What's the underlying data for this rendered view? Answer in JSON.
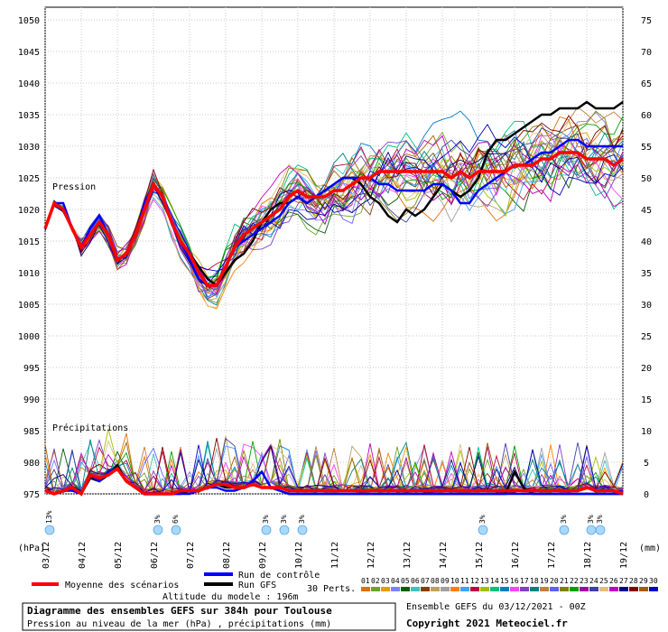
{
  "chart_data": {
    "type": "line",
    "label_pressure": "Pression",
    "label_precip": "Précipitations",
    "unit_left": "(hPa)",
    "unit_right": "(mm)",
    "y_left_ticks": [
      975,
      980,
      985,
      990,
      995,
      1000,
      1005,
      1010,
      1015,
      1020,
      1025,
      1030,
      1035,
      1040,
      1045,
      1050
    ],
    "y_right_ticks": [
      0,
      5,
      10,
      15,
      20,
      25,
      30,
      35,
      40,
      45,
      50,
      55,
      60,
      65,
      70,
      75
    ],
    "ylim_left": [
      975,
      1050
    ],
    "ylim_right": [
      0,
      75
    ],
    "x_ticks": [
      "03/12",
      "04/12",
      "05/12",
      "06/12",
      "07/12",
      "08/12",
      "09/12",
      "10/12",
      "11/12",
      "12/12",
      "13/12",
      "14/12",
      "15/12",
      "16/12",
      "17/12",
      "18/12",
      "19/12"
    ],
    "x_range_hours": [
      0,
      384
    ],
    "snow_marks": [
      {
        "hour": 3,
        "pct": "13%"
      },
      {
        "hour": 75,
        "pct": "3%"
      },
      {
        "hour": 87,
        "pct": "6%"
      },
      {
        "hour": 147,
        "pct": "3%"
      },
      {
        "hour": 159,
        "pct": "3%"
      },
      {
        "hour": 171,
        "pct": "3%"
      },
      {
        "hour": 291,
        "pct": "3%"
      },
      {
        "hour": 345,
        "pct": "3%"
      },
      {
        "hour": 363,
        "pct": "3%"
      },
      {
        "hour": 369,
        "pct": "3%"
      }
    ],
    "series_pressure": [
      {
        "name": "Moyenne des scénarios",
        "color": "#ff0000",
        "x": [
          0,
          6,
          12,
          18,
          24,
          30,
          36,
          42,
          48,
          54,
          60,
          66,
          72,
          78,
          84,
          90,
          96,
          102,
          108,
          114,
          120,
          126,
          132,
          138,
          144,
          150,
          156,
          162,
          168,
          174,
          180,
          186,
          192,
          198,
          204,
          210,
          216,
          222,
          228,
          234,
          240,
          246,
          252,
          258,
          264,
          270,
          276,
          282,
          288,
          294,
          300,
          306,
          312,
          318,
          324,
          330,
          336,
          342,
          348,
          354,
          360,
          366,
          372,
          378,
          384
        ],
        "y": [
          1017,
          1021,
          1020,
          1017,
          1014,
          1016,
          1018,
          1016,
          1012,
          1013,
          1016,
          1020,
          1024,
          1022,
          1018,
          1015,
          1013,
          1010,
          1008,
          1008,
          1011,
          1014,
          1016,
          1017,
          1018,
          1019,
          1020,
          1022,
          1023,
          1022,
          1022,
          1022,
          1023,
          1023,
          1024,
          1025,
          1025,
          1026,
          1026,
          1026,
          1026,
          1026,
          1026,
          1026,
          1026,
          1025,
          1026,
          1025,
          1026,
          1026,
          1026,
          1026,
          1027,
          1027,
          1027,
          1028,
          1028,
          1029,
          1029,
          1029,
          1028,
          1028,
          1028,
          1027,
          1028
        ]
      },
      {
        "name": "Run de contrôle",
        "color": "#0000ff",
        "x": [
          0,
          6,
          12,
          18,
          24,
          30,
          36,
          42,
          48,
          54,
          60,
          66,
          72,
          78,
          84,
          90,
          96,
          102,
          108,
          114,
          120,
          126,
          132,
          138,
          144,
          150,
          156,
          162,
          168,
          174,
          180,
          186,
          192,
          198,
          204,
          210,
          216,
          222,
          228,
          234,
          240,
          246,
          252,
          258,
          264,
          270,
          276,
          282,
          288,
          294,
          300,
          306,
          312,
          318,
          324,
          330,
          336,
          342,
          348,
          354,
          360,
          366,
          372,
          378,
          384
        ],
        "y": [
          1017,
          1021,
          1021,
          1017,
          1014,
          1017,
          1019,
          1016,
          1012,
          1013,
          1016,
          1021,
          1024,
          1022,
          1018,
          1015,
          1012,
          1009,
          1008,
          1008,
          1011,
          1014,
          1015,
          1016,
          1017,
          1018,
          1019,
          1021,
          1022,
          1021,
          1022,
          1023,
          1024,
          1025,
          1025,
          1025,
          1025,
          1024,
          1024,
          1023,
          1023,
          1023,
          1023,
          1024,
          1024,
          1023,
          1021,
          1021,
          1023,
          1024,
          1025,
          1026,
          1027,
          1027,
          1028,
          1029,
          1029,
          1030,
          1031,
          1031,
          1030,
          1030,
          1030,
          1030,
          1030
        ]
      },
      {
        "name": "Run GFS",
        "color": "#000000",
        "x": [
          0,
          6,
          12,
          18,
          24,
          30,
          36,
          42,
          48,
          54,
          60,
          66,
          72,
          78,
          84,
          90,
          96,
          102,
          108,
          114,
          120,
          126,
          132,
          138,
          144,
          150,
          156,
          162,
          168,
          174,
          180,
          186,
          192,
          198,
          204,
          210,
          216,
          222,
          228,
          234,
          240,
          246,
          252,
          258,
          264,
          270,
          276,
          282,
          288,
          294,
          300,
          306,
          312,
          318,
          324,
          330,
          336,
          342,
          348,
          354,
          360,
          366,
          372,
          378,
          384
        ],
        "y": [
          1017,
          1021,
          1020,
          1017,
          1014,
          1016,
          1018,
          1016,
          1012,
          1013,
          1016,
          1020,
          1024,
          1022,
          1018,
          1015,
          1013,
          1011,
          1009,
          1008,
          1010,
          1012,
          1013,
          1015,
          1018,
          1020,
          1021,
          1021,
          1022,
          1021,
          1022,
          1023,
          1024,
          1025,
          1025,
          1024,
          1022,
          1021,
          1019,
          1018,
          1020,
          1019,
          1020,
          1022,
          1024,
          1023,
          1022,
          1023,
          1025,
          1029,
          1031,
          1031,
          1032,
          1033,
          1034,
          1035,
          1035,
          1036,
          1036,
          1036,
          1037,
          1036,
          1036,
          1036,
          1037
        ]
      }
    ],
    "series_precip": [
      {
        "name": "Moyenne des scénarios",
        "color": "#ff0000",
        "x": [
          0,
          6,
          12,
          18,
          24,
          30,
          36,
          42,
          48,
          54,
          60,
          66,
          72,
          78,
          84,
          90,
          96,
          102,
          108,
          114,
          120,
          126,
          132,
          138,
          144,
          150,
          156,
          162,
          168,
          174,
          180,
          186,
          192,
          198,
          204,
          210,
          216,
          222,
          228,
          234,
          240,
          246,
          252,
          258,
          264,
          270,
          276,
          282,
          288,
          294,
          300,
          306,
          312,
          318,
          324,
          330,
          336,
          342,
          348,
          354,
          360,
          366,
          372,
          378,
          384
        ],
        "y": [
          0.5,
          0,
          0.5,
          1,
          0,
          3,
          2.5,
          3,
          4,
          2,
          1,
          0,
          0,
          0,
          0,
          0.5,
          0.5,
          0.5,
          1,
          1.5,
          1.5,
          1,
          1,
          1.5,
          1,
          1,
          1,
          0.5,
          0.5,
          0.5,
          0.5,
          0.5,
          0.5,
          0.5,
          0.5,
          0.5,
          0.5,
          0.5,
          0.5,
          0.5,
          0.5,
          0.5,
          0.5,
          0.5,
          0.5,
          0.5,
          0.5,
          0.5,
          0.5,
          0.5,
          0.5,
          0.5,
          0.5,
          0.5,
          0.5,
          0.5,
          0.5,
          0.5,
          0.5,
          0.5,
          1,
          0.5,
          0.5,
          0.5,
          0
        ]
      },
      {
        "name": "Run de contrôle",
        "color": "#0000ff",
        "x": [
          0,
          6,
          12,
          18,
          24,
          30,
          36,
          42,
          48,
          54,
          60,
          66,
          72,
          78,
          84,
          90,
          96,
          102,
          108,
          114,
          120,
          126,
          132,
          138,
          144,
          150,
          156,
          162,
          168,
          174,
          180,
          186,
          192,
          198,
          204,
          210,
          216,
          222,
          228,
          234,
          240,
          246,
          252,
          258,
          264,
          270,
          276,
          282,
          288,
          294,
          300,
          306,
          312,
          318,
          324,
          330,
          336,
          342,
          348,
          354,
          360,
          366,
          372,
          378,
          384
        ],
        "y": [
          0.5,
          0,
          0.5,
          0.5,
          0,
          3,
          2,
          3.5,
          4,
          2,
          1,
          0,
          0,
          0,
          0,
          0,
          0,
          0.5,
          1,
          1,
          0.5,
          0.5,
          1,
          2,
          3.5,
          1,
          0.5,
          0,
          0,
          0,
          0,
          0,
          0,
          0,
          0,
          0,
          0,
          0,
          0,
          0,
          0,
          0,
          0,
          0,
          0,
          0,
          0,
          0,
          0,
          0,
          0,
          0,
          0,
          0,
          0,
          0,
          0,
          0,
          0,
          0,
          0,
          0,
          0,
          0,
          0
        ]
      },
      {
        "name": "Run GFS",
        "color": "#000000",
        "x": [
          0,
          6,
          12,
          18,
          24,
          30,
          36,
          42,
          48,
          54,
          60,
          66,
          72,
          78,
          84,
          90,
          96,
          102,
          108,
          114,
          120,
          126,
          132,
          138,
          144,
          150,
          156,
          162,
          168,
          174,
          180,
          186,
          192,
          198,
          204,
          210,
          216,
          222,
          228,
          234,
          240,
          246,
          252,
          258,
          264,
          270,
          276,
          282,
          288,
          294,
          300,
          306,
          312,
          318,
          324,
          330,
          336,
          342,
          348,
          354,
          360,
          366,
          372,
          378,
          384
        ],
        "y": [
          0.5,
          0,
          0.5,
          1,
          0,
          2.5,
          2,
          3,
          4.5,
          2,
          1,
          0,
          0,
          0,
          0,
          0,
          0.5,
          0.5,
          1,
          1.5,
          1,
          1,
          1,
          1.5,
          1,
          1,
          0.5,
          0,
          0,
          0,
          0,
          0,
          0,
          0,
          0,
          0,
          0,
          0,
          0,
          0,
          0,
          0,
          0,
          0,
          0,
          0,
          0,
          0,
          0,
          0,
          0,
          0,
          3.5,
          1,
          0,
          0,
          0,
          0,
          0,
          0,
          0,
          0,
          0,
          0,
          0
        ]
      }
    ]
  },
  "legend": {
    "mean_label": "Moyenne des scénarios",
    "control_label": "Run de contrôle",
    "gfs_label": "Run GFS",
    "perts_label": "30 Perts.",
    "perts": [
      "01",
      "02",
      "03",
      "04",
      "05",
      "06",
      "07",
      "08",
      "09",
      "10",
      "11",
      "12",
      "13",
      "14",
      "15",
      "16",
      "17",
      "18",
      "19",
      "20",
      "21",
      "22",
      "23",
      "24",
      "25",
      "26",
      "27",
      "28",
      "29",
      "30"
    ],
    "perts_colors": [
      "#e07000",
      "#70a030",
      "#e0a000",
      "#8080ff",
      "#006000",
      "#40c0c0",
      "#804000",
      "#c0a060",
      "#a0a0a0",
      "#ff8000",
      "#40a0ff",
      "#c00040",
      "#a0c000",
      "#00c080",
      "#0080c0",
      "#ff40ff",
      "#8040c0",
      "#008080",
      "#c08040",
      "#6060ff",
      "#808000",
      "#00a000",
      "#a000a0",
      "#4040a0",
      "#e0c080",
      "#c000c0",
      "#000080",
      "#800000",
      "#a06000",
      "#0000c0"
    ],
    "mean_color": "#ff0000",
    "control_color": "#0000ff",
    "gfs_color": "#000000"
  },
  "altitude": "Altitude du modele : 196m",
  "footer": {
    "title": "Diagramme des ensembles GEFS sur 384h pour Toulouse",
    "subtitle": "Pression au niveau de la mer (hPa) , précipitations (mm)",
    "run_info": "Ensemble GEFS du 03/12/2021 - 00Z",
    "copyright": "Copyright 2021 Meteociel.fr"
  }
}
